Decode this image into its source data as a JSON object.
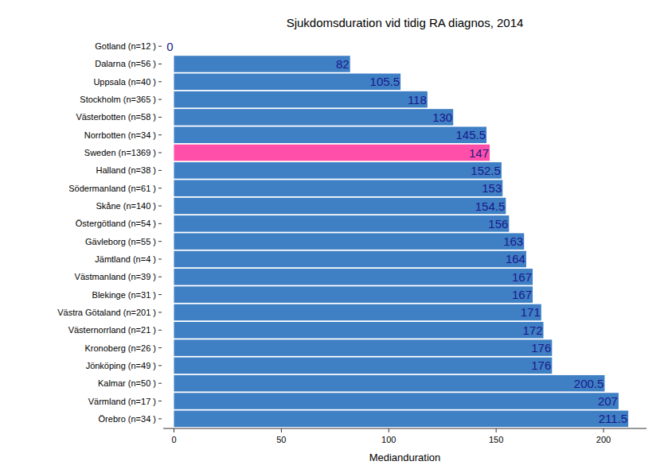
{
  "chart_data": {
    "type": "bar",
    "orientation": "horizontal",
    "title": "Sjukdomsduration vid tidig RA diagnos, 2014",
    "x_label": "Medianduration",
    "categories": [
      "Gotland (n=12 )",
      "Dalarna (n=56 )",
      "Uppsala (n=40 )",
      "Stockholm (n=365 )",
      "Västerbotten (n=58 )",
      "Norrbotten (n=34 )",
      "Sweden (n=1369 )",
      "Halland (n=38 )",
      "Södermanland (n=61 )",
      "Skåne (n=140 )",
      "Östergötland (n=54 )",
      "Gävleborg (n=55 )",
      "Jämtland (n=4 )",
      "Västmanland (n=39 )",
      "Blekinge (n=31 )",
      "Västra Götaland (n=201 )",
      "Västernorrland (n=21 )",
      "Kronoberg (n=26 )",
      "Jönköping (n=49 )",
      "Kalmar (n=50 )",
      "Värmland (n=17 )",
      "Örebro (n=34 )"
    ],
    "values": [
      0,
      82,
      105.5,
      118,
      130,
      145.5,
      147,
      152.5,
      153,
      154.5,
      156,
      163,
      164,
      167,
      167,
      171,
      172,
      176,
      176,
      200.5,
      207,
      211.5
    ],
    "colors": [
      "#3f7fc4",
      "#3f7fc4",
      "#3f7fc4",
      "#3f7fc4",
      "#3f7fc4",
      "#3f7fc4",
      "#ff4fa8",
      "#3f7fc4",
      "#3f7fc4",
      "#3f7fc4",
      "#3f7fc4",
      "#3f7fc4",
      "#3f7fc4",
      "#3f7fc4",
      "#3f7fc4",
      "#3f7fc4",
      "#3f7fc4",
      "#3f7fc4",
      "#3f7fc4",
      "#3f7fc4",
      "#3f7fc4",
      "#3f7fc4"
    ],
    "xlim": [
      -5,
      220
    ],
    "xticks": [
      0,
      50,
      100,
      150,
      200
    ],
    "grid": false,
    "data_labels": true
  }
}
